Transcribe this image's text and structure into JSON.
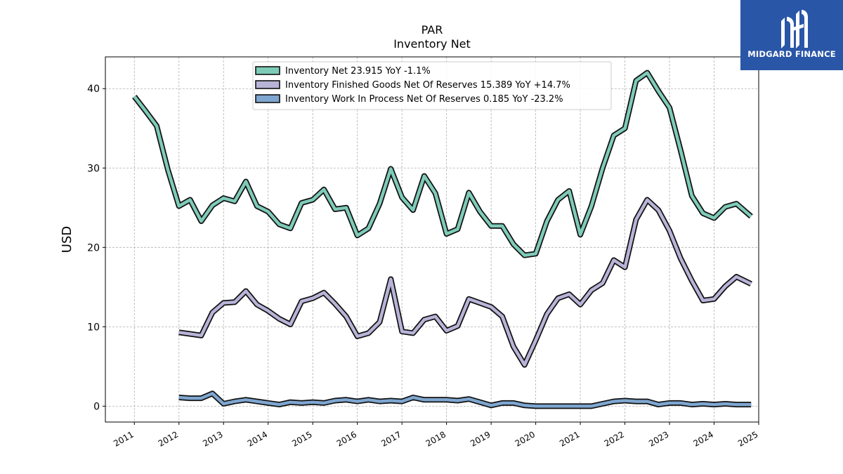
{
  "brand": {
    "name": "MIDGARD FINANCE",
    "color": "#2a56a8"
  },
  "chart_data": {
    "type": "line",
    "title": "PAR",
    "subtitle": "Inventory Net",
    "ylabel": "USD",
    "xlabel": "",
    "xlim": [
      2010.35,
      2025.0
    ],
    "ylim": [
      -2.0,
      44.0
    ],
    "x_ticks": [
      2011,
      2012,
      2013,
      2014,
      2015,
      2016,
      2017,
      2018,
      2019,
      2020,
      2021,
      2022,
      2023,
      2024,
      2025
    ],
    "y_ticks": [
      0,
      10,
      20,
      30,
      40
    ],
    "grid": true,
    "legend_position": "top-center",
    "series": [
      {
        "name": "Inventory Net",
        "legend_label": "Inventory Net  23.915 YoY -1.1%",
        "color": "#7ecbb8",
        "points": [
          [
            2011.0,
            39.0
          ],
          [
            2011.25,
            37.2
          ],
          [
            2011.5,
            35.3
          ],
          [
            2011.75,
            29.8
          ],
          [
            2012.0,
            25.2
          ],
          [
            2012.25,
            26.0
          ],
          [
            2012.5,
            23.3
          ],
          [
            2012.75,
            25.3
          ],
          [
            2013.0,
            26.2
          ],
          [
            2013.25,
            25.8
          ],
          [
            2013.5,
            28.3
          ],
          [
            2013.75,
            25.2
          ],
          [
            2014.0,
            24.5
          ],
          [
            2014.25,
            22.9
          ],
          [
            2014.5,
            22.4
          ],
          [
            2014.75,
            25.6
          ],
          [
            2015.0,
            26.0
          ],
          [
            2015.25,
            27.3
          ],
          [
            2015.5,
            24.8
          ],
          [
            2015.75,
            25.0
          ],
          [
            2016.0,
            21.5
          ],
          [
            2016.25,
            22.4
          ],
          [
            2016.5,
            25.5
          ],
          [
            2016.75,
            29.9
          ],
          [
            2017.0,
            26.3
          ],
          [
            2017.25,
            24.7
          ],
          [
            2017.5,
            29.0
          ],
          [
            2017.75,
            26.8
          ],
          [
            2018.0,
            21.7
          ],
          [
            2018.25,
            22.3
          ],
          [
            2018.5,
            26.9
          ],
          [
            2018.75,
            24.5
          ],
          [
            2019.0,
            22.7
          ],
          [
            2019.25,
            22.7
          ],
          [
            2019.5,
            20.4
          ],
          [
            2019.75,
            19.0
          ],
          [
            2020.0,
            19.2
          ],
          [
            2020.25,
            23.3
          ],
          [
            2020.5,
            26.0
          ],
          [
            2020.75,
            27.1
          ],
          [
            2021.0,
            21.6
          ],
          [
            2021.25,
            25.2
          ],
          [
            2021.5,
            30.0
          ],
          [
            2021.75,
            34.1
          ],
          [
            2022.0,
            35.0
          ],
          [
            2022.25,
            41.0
          ],
          [
            2022.5,
            42.0
          ],
          [
            2022.75,
            39.7
          ],
          [
            2023.0,
            37.6
          ],
          [
            2023.25,
            32.2
          ],
          [
            2023.5,
            26.5
          ],
          [
            2023.75,
            24.3
          ],
          [
            2024.0,
            23.7
          ],
          [
            2024.25,
            25.1
          ],
          [
            2024.5,
            25.5
          ],
          [
            2024.83,
            23.9
          ]
        ]
      },
      {
        "name": "Inventory Finished Goods Net Of Reserves",
        "legend_label": "Inventory Finished Goods Net Of Reserves  15.389 YoY +14.7%",
        "color": "#b8b4d8",
        "points": [
          [
            2012.0,
            9.3
          ],
          [
            2012.25,
            9.1
          ],
          [
            2012.5,
            8.9
          ],
          [
            2012.75,
            11.8
          ],
          [
            2013.0,
            13.0
          ],
          [
            2013.25,
            13.1
          ],
          [
            2013.5,
            14.5
          ],
          [
            2013.75,
            12.8
          ],
          [
            2014.0,
            12.0
          ],
          [
            2014.25,
            11.0
          ],
          [
            2014.5,
            10.3
          ],
          [
            2014.75,
            13.2
          ],
          [
            2015.0,
            13.6
          ],
          [
            2015.25,
            14.3
          ],
          [
            2015.5,
            12.9
          ],
          [
            2015.75,
            11.3
          ],
          [
            2016.0,
            8.8
          ],
          [
            2016.25,
            9.2
          ],
          [
            2016.5,
            10.6
          ],
          [
            2016.75,
            16.0
          ],
          [
            2017.0,
            9.4
          ],
          [
            2017.25,
            9.2
          ],
          [
            2017.5,
            10.9
          ],
          [
            2017.75,
            11.3
          ],
          [
            2018.0,
            9.5
          ],
          [
            2018.25,
            10.1
          ],
          [
            2018.5,
            13.5
          ],
          [
            2018.75,
            13.0
          ],
          [
            2019.0,
            12.5
          ],
          [
            2019.25,
            11.3
          ],
          [
            2019.5,
            7.5
          ],
          [
            2019.75,
            5.2
          ],
          [
            2020.0,
            8.3
          ],
          [
            2020.25,
            11.6
          ],
          [
            2020.5,
            13.6
          ],
          [
            2020.75,
            14.1
          ],
          [
            2021.0,
            12.8
          ],
          [
            2021.25,
            14.6
          ],
          [
            2021.5,
            15.5
          ],
          [
            2021.75,
            18.4
          ],
          [
            2022.0,
            17.5
          ],
          [
            2022.25,
            23.5
          ],
          [
            2022.5,
            26.0
          ],
          [
            2022.75,
            24.7
          ],
          [
            2023.0,
            22.1
          ],
          [
            2023.25,
            18.6
          ],
          [
            2023.5,
            15.8
          ],
          [
            2023.75,
            13.3
          ],
          [
            2024.0,
            13.5
          ],
          [
            2024.25,
            15.1
          ],
          [
            2024.5,
            16.3
          ],
          [
            2024.83,
            15.4
          ]
        ]
      },
      {
        "name": "Inventory Work In Process Net Of Reserves",
        "legend_label": "Inventory Work In Process Net Of Reserves  0.185 YoY -23.2%",
        "color": "#7ea6d0",
        "points": [
          [
            2012.0,
            1.1
          ],
          [
            2012.25,
            1.0
          ],
          [
            2012.5,
            1.0
          ],
          [
            2012.75,
            1.6
          ],
          [
            2013.0,
            0.3
          ],
          [
            2013.25,
            0.6
          ],
          [
            2013.5,
            0.8
          ],
          [
            2013.75,
            0.6
          ],
          [
            2014.0,
            0.4
          ],
          [
            2014.25,
            0.2
          ],
          [
            2014.5,
            0.5
          ],
          [
            2014.75,
            0.4
          ],
          [
            2015.0,
            0.5
          ],
          [
            2015.25,
            0.4
          ],
          [
            2015.5,
            0.7
          ],
          [
            2015.75,
            0.8
          ],
          [
            2016.0,
            0.6
          ],
          [
            2016.25,
            0.8
          ],
          [
            2016.5,
            0.6
          ],
          [
            2016.75,
            0.7
          ],
          [
            2017.0,
            0.6
          ],
          [
            2017.25,
            1.1
          ],
          [
            2017.5,
            0.8
          ],
          [
            2017.75,
            0.8
          ],
          [
            2018.0,
            0.8
          ],
          [
            2018.25,
            0.7
          ],
          [
            2018.5,
            0.9
          ],
          [
            2018.75,
            0.5
          ],
          [
            2019.0,
            0.1
          ],
          [
            2019.25,
            0.4
          ],
          [
            2019.5,
            0.4
          ],
          [
            2019.75,
            0.1
          ],
          [
            2020.0,
            0.0
          ],
          [
            2020.25,
            0.0
          ],
          [
            2020.5,
            0.0
          ],
          [
            2020.75,
            0.0
          ],
          [
            2021.0,
            0.0
          ],
          [
            2021.25,
            0.0
          ],
          [
            2021.5,
            0.3
          ],
          [
            2021.75,
            0.6
          ],
          [
            2022.0,
            0.7
          ],
          [
            2022.25,
            0.6
          ],
          [
            2022.5,
            0.6
          ],
          [
            2022.75,
            0.2
          ],
          [
            2023.0,
            0.4
          ],
          [
            2023.25,
            0.4
          ],
          [
            2023.5,
            0.2
          ],
          [
            2023.75,
            0.3
          ],
          [
            2024.0,
            0.2
          ],
          [
            2024.25,
            0.3
          ],
          [
            2024.5,
            0.2
          ],
          [
            2024.83,
            0.2
          ]
        ]
      }
    ]
  }
}
